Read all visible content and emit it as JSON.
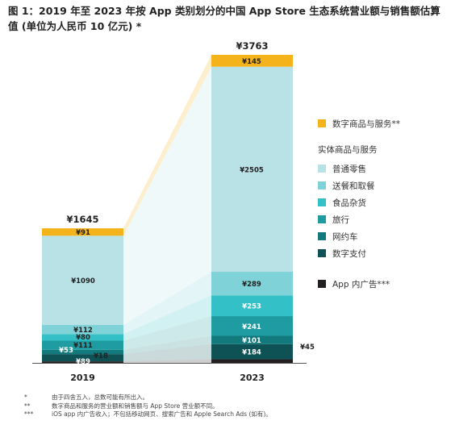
{
  "title": "图 1：2019 年至 2023 年按 App 类别划分的中国 App Store 生态系统营业额与销售额估算值 (单位为人民币 10 亿元) *",
  "legend": {
    "digital": "数字商品与服务**",
    "physical_heading": "实体商品与服务",
    "retail": "普通零售",
    "delivery": "送餐和取餐",
    "grocery": "食品杂货",
    "travel": "旅行",
    "ridehailing": "网约车",
    "payments": "数字支付",
    "ads": "App 内广告***"
  },
  "chart_data": {
    "type": "bar",
    "stacked": true,
    "categories": [
      "2019",
      "2023"
    ],
    "totals": [
      1645,
      3763
    ],
    "total_labels": [
      "¥1645",
      "¥3763"
    ],
    "ylim": [
      0,
      3763
    ],
    "series": [
      {
        "key": "ads",
        "name": "App 内广告***",
        "color": "#231f20",
        "values": [
          18,
          45
        ],
        "labels": [
          "¥18",
          "¥45"
        ]
      },
      {
        "key": "payments",
        "name": "数字支付",
        "color": "#0f5255",
        "values": [
          89,
          184
        ],
        "labels": [
          "¥89",
          "¥184"
        ]
      },
      {
        "key": "ridehailing",
        "name": "网约车",
        "color": "#12797d",
        "values": [
          53,
          101
        ],
        "labels": [
          "¥53",
          "¥101"
        ]
      },
      {
        "key": "travel",
        "name": "旅行",
        "color": "#1f9ca1",
        "values": [
          111,
          241
        ],
        "labels": [
          "¥111",
          "¥241"
        ]
      },
      {
        "key": "grocery",
        "name": "食品杂货",
        "color": "#33c1c7",
        "values": [
          80,
          253
        ],
        "labels": [
          "¥80",
          "¥253"
        ]
      },
      {
        "key": "delivery",
        "name": "送餐和取餐",
        "color": "#7fd3d8",
        "values": [
          112,
          289
        ],
        "labels": [
          "¥112",
          "¥289"
        ]
      },
      {
        "key": "retail",
        "name": "普通零售",
        "color": "#b9e2e7",
        "values": [
          1090,
          2505
        ],
        "labels": [
          "¥1090",
          "¥2505"
        ]
      },
      {
        "key": "digital",
        "name": "数字商品与服务**",
        "color": "#f5b31b",
        "values": [
          91,
          145
        ],
        "labels": [
          "¥91",
          "¥145"
        ]
      }
    ]
  },
  "footnotes": [
    {
      "mark": "*",
      "text": "由于四舍五入，总数可能有所出入。"
    },
    {
      "mark": "**",
      "text": "数字商品和服务的营业额和销售额与 App Store 营业额不同。"
    },
    {
      "mark": "***",
      "text": "iOS app 内广告收入；不包括移动网页、搜索广告和 Apple Search Ads (如有)。"
    }
  ]
}
